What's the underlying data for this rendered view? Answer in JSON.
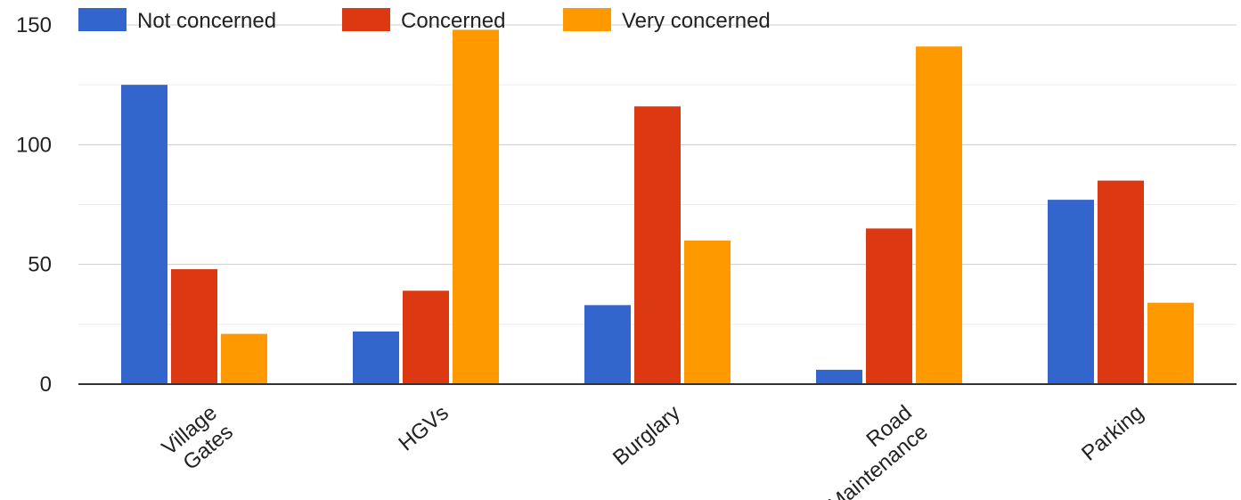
{
  "chart_data": {
    "type": "bar",
    "categories": [
      [
        "Village",
        "Gates"
      ],
      [
        "HGVs"
      ],
      [
        "Burglary"
      ],
      [
        "Road",
        "Maintenance"
      ],
      [
        "Parking"
      ]
    ],
    "series": [
      {
        "name": "Not concerned",
        "color": "#3366cc",
        "values": [
          125,
          22,
          33,
          6,
          77
        ]
      },
      {
        "name": "Concerned",
        "color": "#dc3912",
        "values": [
          48,
          39,
          116,
          65,
          85
        ]
      },
      {
        "name": "Very concerned",
        "color": "#ff9900",
        "values": [
          21,
          148,
          60,
          141,
          34
        ]
      }
    ],
    "ylim": [
      0,
      150
    ],
    "yticks": [
      0,
      50,
      100,
      150
    ],
    "grid": true,
    "legend_position": "top"
  }
}
